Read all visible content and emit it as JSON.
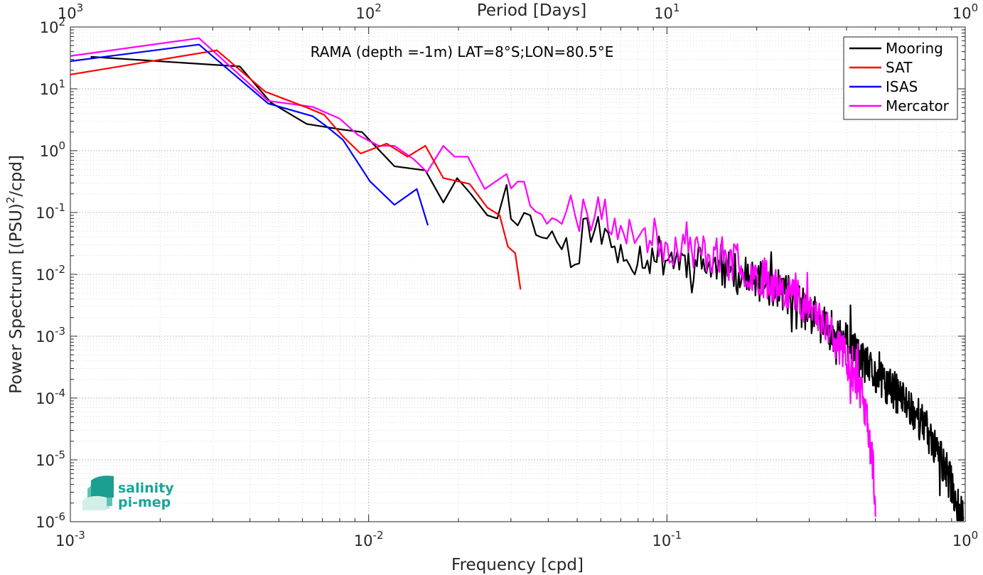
{
  "chart_data": {
    "type": "line",
    "title": "",
    "annotation": "RAMA (depth =-1m) LAT=8°S;LON=80.5°E",
    "xlabel": "Frequency [cpd]",
    "ylabel": "Power Spectrum [(PSU)²/cpd]",
    "top_xlabel": "Period [Days]",
    "x_scale": "log",
    "y_scale": "log",
    "xlim": [
      0.001,
      1
    ],
    "ylim": [
      1e-06,
      100
    ],
    "grid": true,
    "minor_grid": true,
    "legend_position": "top-right",
    "x_ticks": [
      {
        "value": 0.001,
        "base": "10",
        "exp": "-3"
      },
      {
        "value": 0.01,
        "base": "10",
        "exp": "-2"
      },
      {
        "value": 0.1,
        "base": "10",
        "exp": "-1"
      },
      {
        "value": 1,
        "base": "10",
        "exp": "0"
      }
    ],
    "top_ticks": [
      {
        "value": 0.001,
        "base": "10",
        "exp": "3"
      },
      {
        "value": 0.01,
        "base": "10",
        "exp": "2"
      },
      {
        "value": 0.1,
        "base": "10",
        "exp": "1"
      },
      {
        "value": 1,
        "base": "10",
        "exp": "0"
      }
    ],
    "y_ticks": [
      {
        "value": 100,
        "base": "10",
        "exp": "2"
      },
      {
        "value": 10,
        "base": "10",
        "exp": "1"
      },
      {
        "value": 1,
        "base": "10",
        "exp": "0"
      },
      {
        "value": 0.1,
        "base": "10",
        "exp": "-1"
      },
      {
        "value": 0.01,
        "base": "10",
        "exp": "-2"
      },
      {
        "value": 0.001,
        "base": "10",
        "exp": "-3"
      },
      {
        "value": 0.0001,
        "base": "10",
        "exp": "-4"
      },
      {
        "value": 1e-05,
        "base": "10",
        "exp": "-5"
      },
      {
        "value": 1e-06,
        "base": "10",
        "exp": "-6"
      }
    ],
    "series": [
      {
        "name": "Mooring",
        "color": "#000000",
        "anchors": [
          [
            0.00117,
            33
          ],
          [
            0.0037,
            23
          ],
          [
            0.0047,
            6
          ],
          [
            0.0062,
            2.7
          ],
          [
            0.0081,
            2.2
          ],
          [
            0.0095,
            2.0
          ],
          [
            0.0122,
            0.56
          ],
          [
            0.0155,
            0.48
          ],
          [
            0.0178,
            0.145
          ],
          [
            0.0198,
            0.36
          ],
          [
            0.022,
            0.2
          ],
          [
            0.025,
            0.09
          ],
          [
            0.027,
            0.08
          ],
          [
            0.029,
            0.28
          ],
          [
            0.031,
            0.05
          ],
          [
            0.036,
            0.07
          ],
          [
            0.045,
            0.028
          ],
          [
            0.05,
            0.025
          ],
          [
            0.055,
            0.07
          ],
          [
            0.07,
            0.02
          ],
          [
            0.1,
            0.02
          ],
          [
            0.15,
            0.012
          ],
          [
            0.2,
            0.008
          ],
          [
            0.25,
            0.005
          ],
          [
            0.3,
            0.0023
          ],
          [
            0.35,
            0.0013
          ],
          [
            0.4,
            0.0008
          ],
          [
            0.5,
            0.00022
          ],
          [
            0.6,
            0.00011
          ],
          [
            0.7,
            5e-05
          ],
          [
            0.8,
            1.5e-05
          ],
          [
            0.9,
            4e-06
          ],
          [
            0.95,
            1.5e-06
          ],
          [
            0.985,
            1.2e-06
          ]
        ],
        "noise_from": 0.03,
        "noise_amp": 0.33,
        "seed": 11
      },
      {
        "name": "SAT",
        "color": "#ff0000",
        "anchors": [
          [
            0.001,
            17
          ],
          [
            0.0031,
            42
          ],
          [
            0.0045,
            9
          ],
          [
            0.0062,
            5
          ],
          [
            0.0071,
            3.8
          ],
          [
            0.0082,
            1.7
          ],
          [
            0.0094,
            0.9
          ],
          [
            0.0115,
            1.3
          ],
          [
            0.0135,
            0.8
          ],
          [
            0.0155,
            1.2
          ],
          [
            0.0178,
            0.36
          ],
          [
            0.0218,
            0.29
          ],
          [
            0.025,
            0.12
          ],
          [
            0.0275,
            0.09
          ],
          [
            0.0293,
            0.028
          ],
          [
            0.031,
            0.022
          ],
          [
            0.0323,
            0.0057
          ]
        ],
        "noise_from": 10,
        "noise_amp": 0,
        "seed": 3
      },
      {
        "name": "ISAS",
        "color": "#0000ff",
        "anchors": [
          [
            0.001,
            28
          ],
          [
            0.0027,
            52
          ],
          [
            0.0046,
            5.8
          ],
          [
            0.0065,
            3.6
          ],
          [
            0.0072,
            2.5
          ],
          [
            0.0082,
            1.5
          ],
          [
            0.0101,
            0.32
          ],
          [
            0.0122,
            0.133
          ],
          [
            0.0145,
            0.24
          ],
          [
            0.0158,
            0.062
          ]
        ],
        "noise_from": 10,
        "noise_amp": 0,
        "seed": 5
      },
      {
        "name": "Mercator",
        "color": "#ff00ff",
        "anchors": [
          [
            0.001,
            34
          ],
          [
            0.0027,
            66
          ],
          [
            0.0046,
            6.4
          ],
          [
            0.0065,
            5.1
          ],
          [
            0.008,
            3.3
          ],
          [
            0.0092,
            1.8
          ],
          [
            0.0108,
            1.2
          ],
          [
            0.0122,
            1.2
          ],
          [
            0.0142,
            0.72
          ],
          [
            0.0157,
            0.45
          ],
          [
            0.0178,
            1.2
          ],
          [
            0.0194,
            0.8
          ],
          [
            0.0215,
            0.8
          ],
          [
            0.0245,
            0.24
          ],
          [
            0.029,
            0.42
          ],
          [
            0.035,
            0.18
          ],
          [
            0.04,
            0.12
          ],
          [
            0.05,
            0.1
          ],
          [
            0.07,
            0.07
          ],
          [
            0.1,
            0.03
          ],
          [
            0.15,
            0.02
          ],
          [
            0.2,
            0.01
          ],
          [
            0.25,
            0.006
          ],
          [
            0.3,
            0.003
          ],
          [
            0.35,
            0.0014
          ],
          [
            0.4,
            0.00045
          ],
          [
            0.44,
            0.00017
          ],
          [
            0.47,
            4e-05
          ],
          [
            0.49,
            8e-06
          ],
          [
            0.5,
            1.2e-06
          ]
        ],
        "noise_from": 0.03,
        "noise_amp": 0.33,
        "seed": 23
      }
    ]
  },
  "logo": {
    "line1": "salinity",
    "line2": "pi-mep"
  }
}
